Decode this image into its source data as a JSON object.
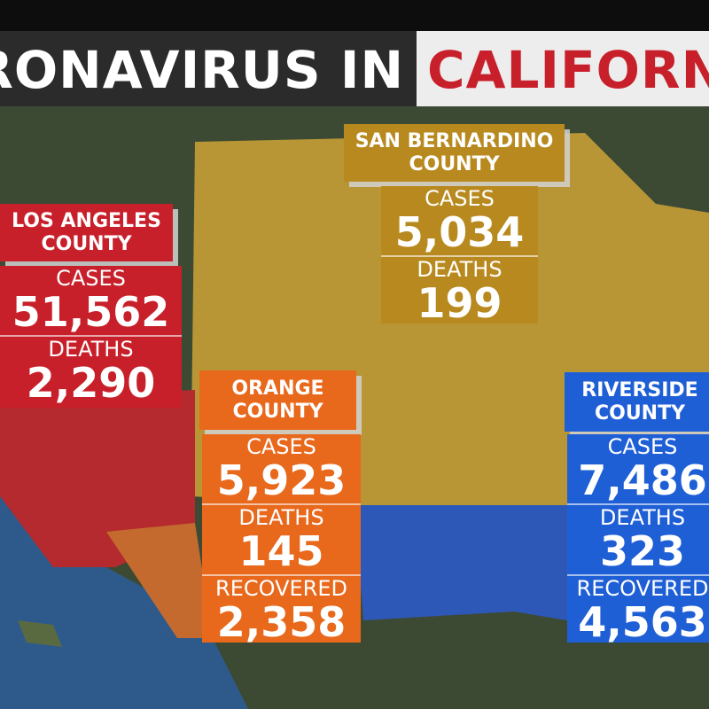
{
  "header": {
    "title_left": "RONAVIRUS IN",
    "title_right": "CALIFORN"
  },
  "counties": [
    {
      "name": "LOS ANGELES COUNTY",
      "stats": [
        {
          "label": "CASES",
          "value": "51,562"
        },
        {
          "label": "DEATHS",
          "value": "2,290"
        }
      ]
    },
    {
      "name": "SAN BERNARDINO COUNTY",
      "stats": [
        {
          "label": "CASES",
          "value": "5,034"
        },
        {
          "label": "DEATHS",
          "value": "199"
        }
      ]
    },
    {
      "name": "ORANGE COUNTY",
      "stats": [
        {
          "label": "CASES",
          "value": "5,923"
        },
        {
          "label": "DEATHS",
          "value": "145"
        },
        {
          "label": "RECOVERED",
          "value": "2,358"
        }
      ]
    },
    {
      "name": "RIVERSIDE COUNTY",
      "stats": [
        {
          "label": "CASES",
          "value": "7,486"
        },
        {
          "label": "DEATHS",
          "value": "323"
        },
        {
          "label": "RECOVERED",
          "value": "4,563"
        }
      ]
    }
  ]
}
